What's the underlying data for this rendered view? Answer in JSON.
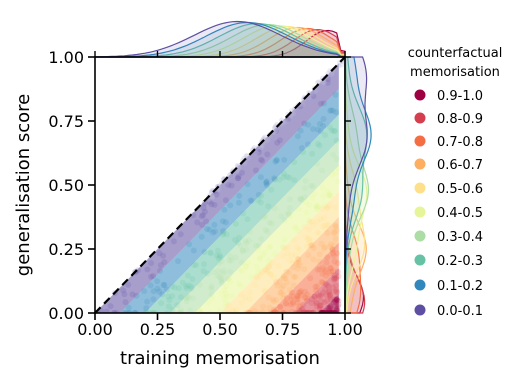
{
  "chart_data": {
    "type": "scatter",
    "xlabel": "training memorisation",
    "ylabel": "generalisation score",
    "xlim": [
      0,
      1
    ],
    "ylim": [
      0,
      1
    ],
    "x_ticks": [
      "0.00",
      "0.25",
      "0.50",
      "0.75",
      "1.00"
    ],
    "y_ticks": [
      "0.00",
      "0.25",
      "0.50",
      "0.75",
      "1.00"
    ],
    "reference_line": {
      "from": [
        0,
        0
      ],
      "to": [
        1,
        1
      ],
      "style": "dashed"
    },
    "marginal_distributions": [
      "top",
      "right"
    ],
    "legend": {
      "title_lines": [
        "counterfactual",
        "memorisation"
      ],
      "placement": "right"
    },
    "series": [
      {
        "name": "0.9-1.0",
        "color": "#9e0142",
        "counterfactual_memorisation": [
          0.9,
          1.0
        ]
      },
      {
        "name": "0.8-0.9",
        "color": "#d53e4f",
        "counterfactual_memorisation": [
          0.8,
          0.9
        ]
      },
      {
        "name": "0.7-0.8",
        "color": "#f46d43",
        "counterfactual_memorisation": [
          0.7,
          0.8
        ]
      },
      {
        "name": "0.6-0.7",
        "color": "#fdae61",
        "counterfactual_memorisation": [
          0.6,
          0.7
        ]
      },
      {
        "name": "0.5-0.6",
        "color": "#fee08b",
        "counterfactual_memorisation": [
          0.5,
          0.6
        ]
      },
      {
        "name": "0.4-0.5",
        "color": "#e6f598",
        "counterfactual_memorisation": [
          0.4,
          0.5
        ]
      },
      {
        "name": "0.3-0.4",
        "color": "#abdda4",
        "counterfactual_memorisation": [
          0.3,
          0.4
        ]
      },
      {
        "name": "0.2-0.3",
        "color": "#66c2a5",
        "counterfactual_memorisation": [
          0.2,
          0.3
        ]
      },
      {
        "name": "0.1-0.2",
        "color": "#3288bd",
        "counterfactual_memorisation": [
          0.1,
          0.2
        ]
      },
      {
        "name": "0.0-0.1",
        "color": "#5e4fa2",
        "counterfactual_memorisation": [
          0.0,
          0.1
        ]
      }
    ]
  }
}
